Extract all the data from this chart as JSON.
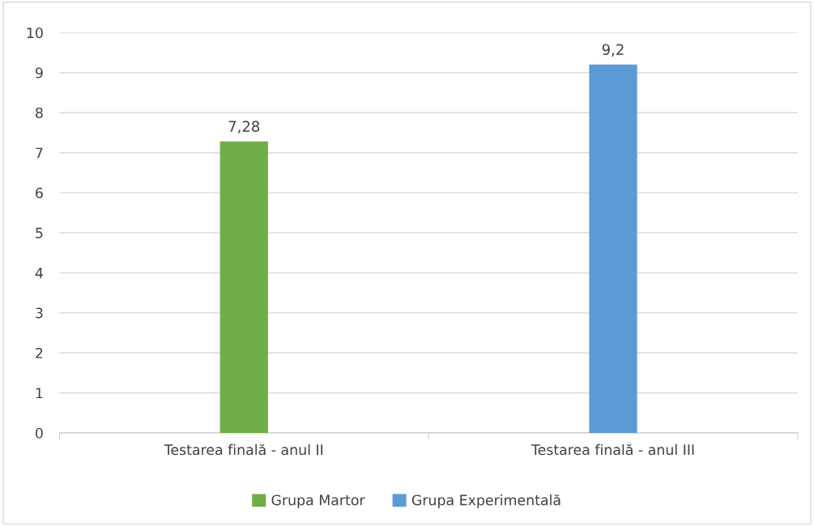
{
  "chart_data": {
    "type": "bar",
    "categories": [
      "Testarea finală - anul II",
      "Testarea finală - anul III"
    ],
    "series": [
      {
        "name": "Grupa Martor",
        "color": "#70ad47",
        "values": [
          7.28,
          null
        ],
        "value_labels": [
          "7,28",
          null
        ]
      },
      {
        "name": "Grupa Experimentală",
        "color": "#5b9bd5",
        "values": [
          null,
          9.2
        ],
        "value_labels": [
          null,
          "9,2"
        ]
      }
    ],
    "ylim": [
      0,
      10
    ],
    "yticks": [
      0,
      1,
      2,
      3,
      4,
      5,
      6,
      7,
      8,
      9,
      10
    ],
    "grid": "y",
    "legend": "bottom"
  }
}
